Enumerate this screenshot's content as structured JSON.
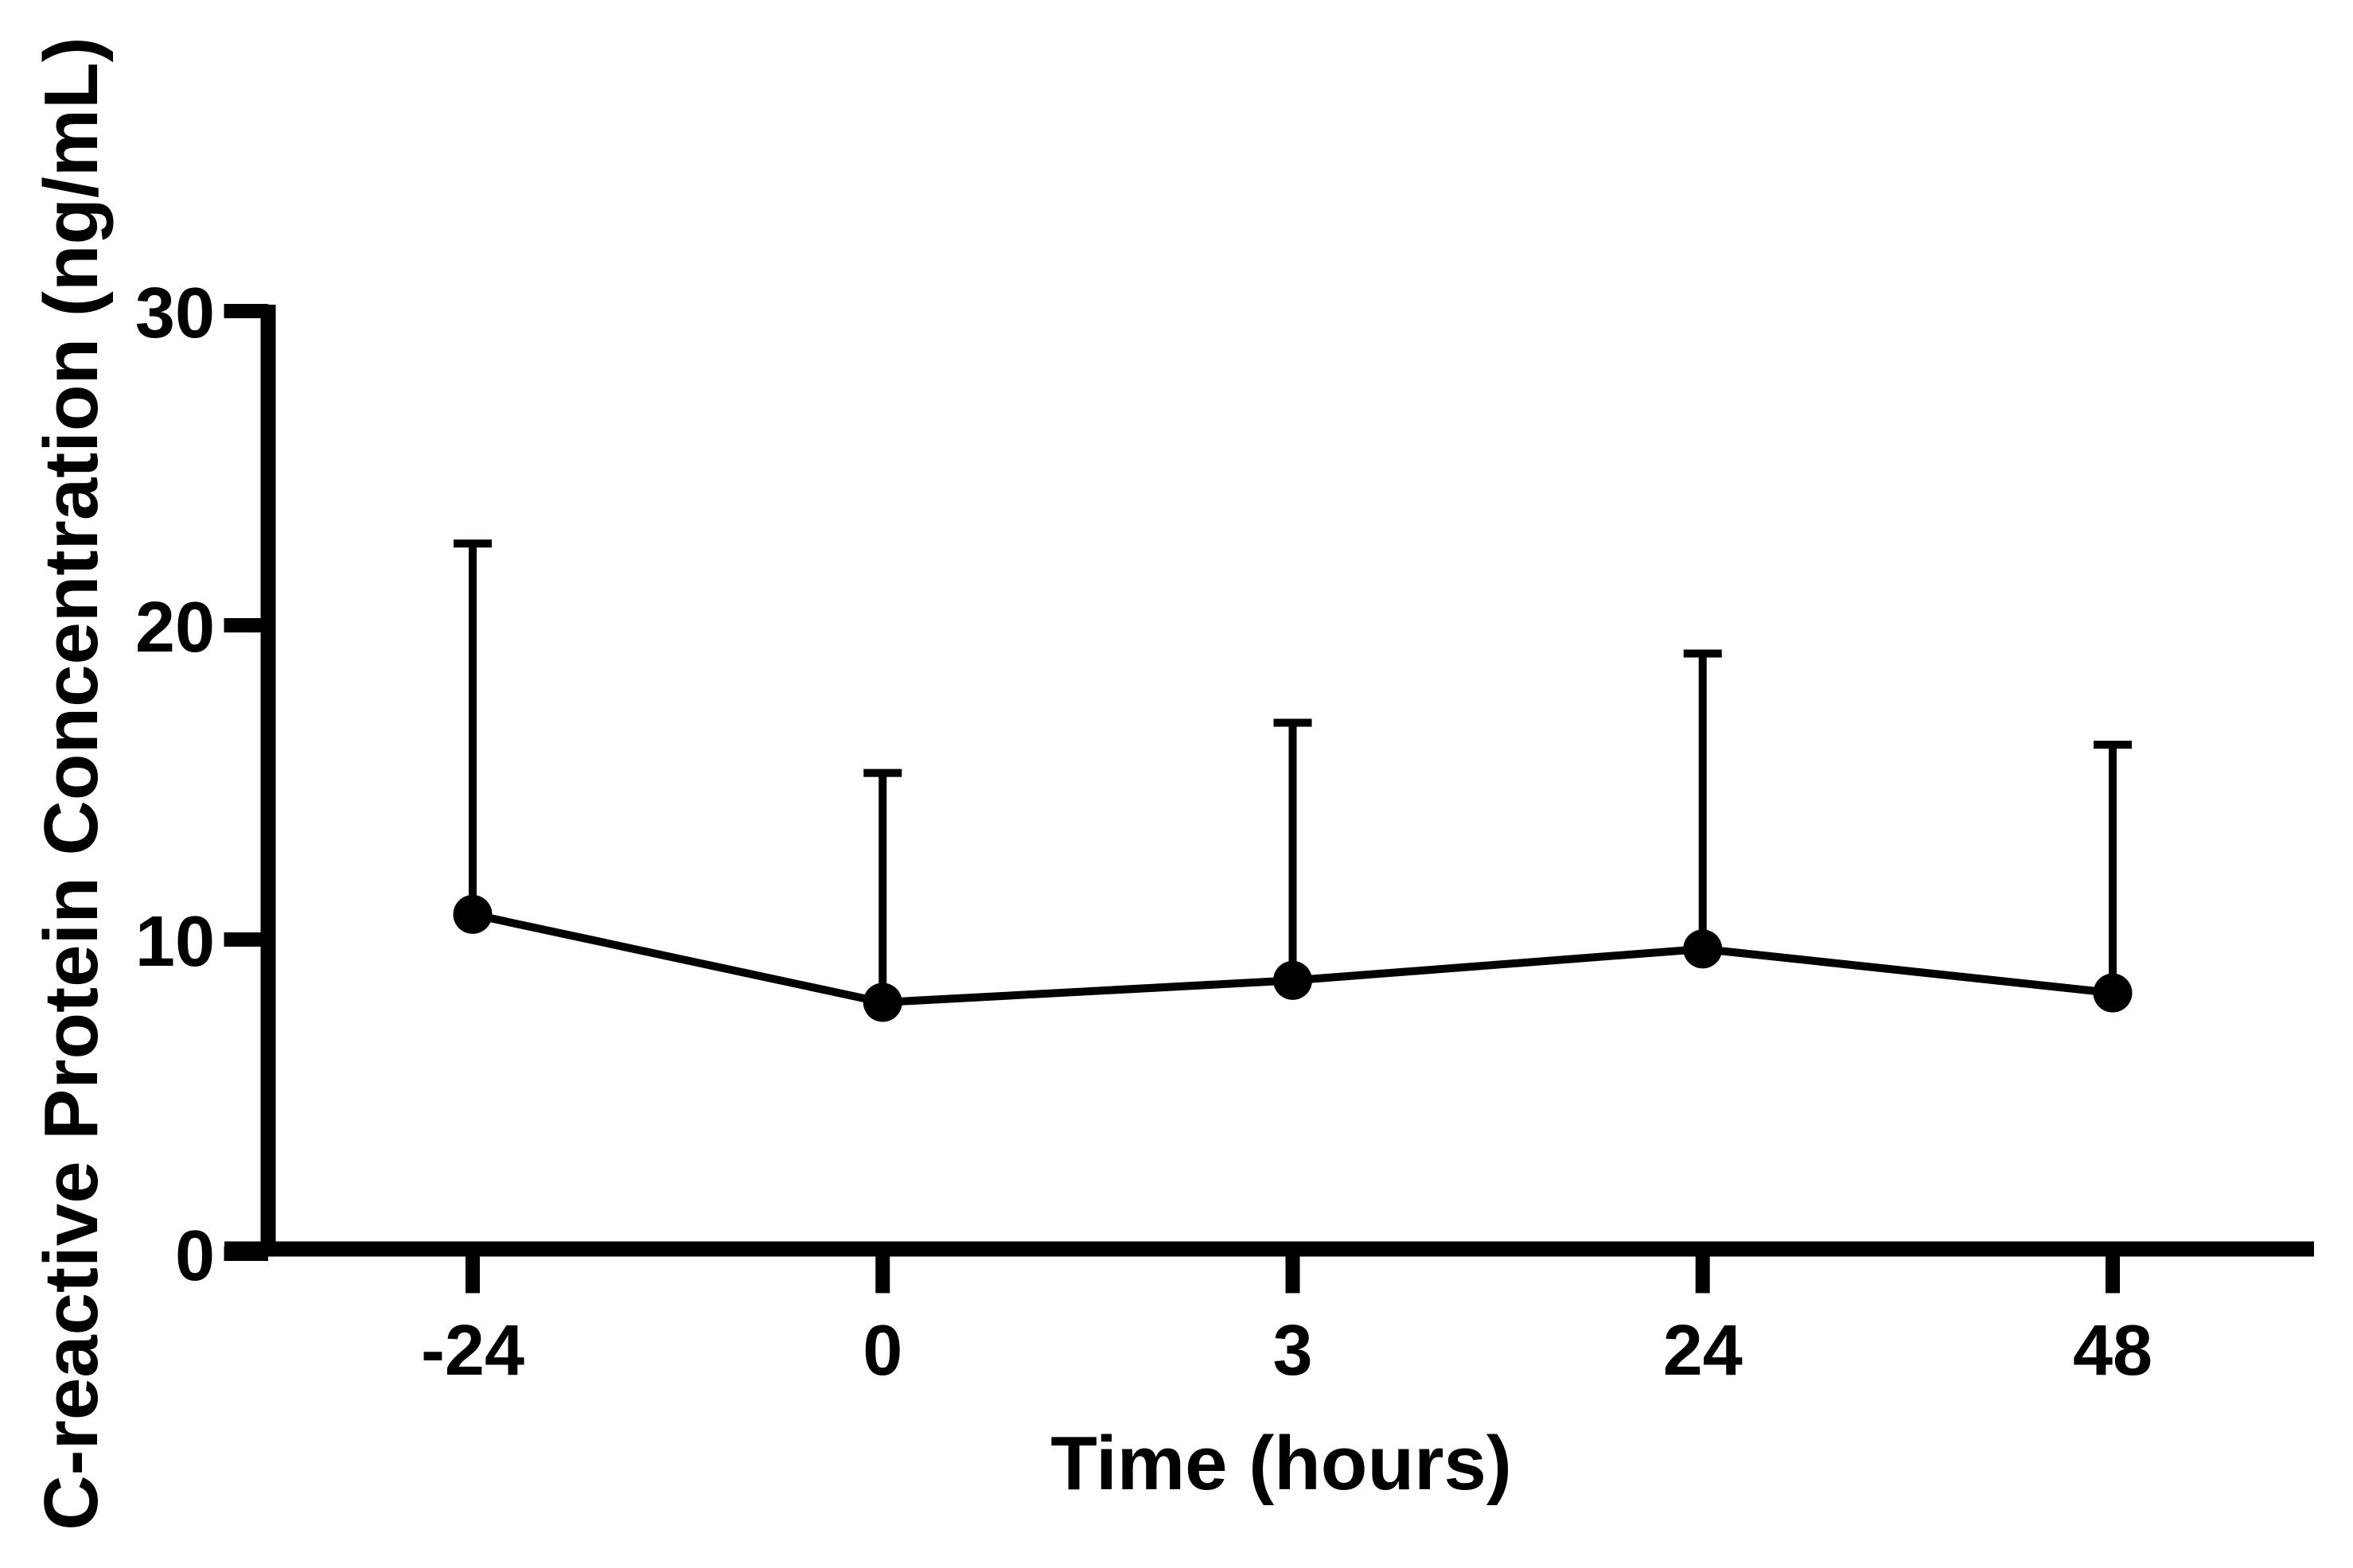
{
  "page": {
    "background_color": "#ffffff",
    "foreground_color": "#000000"
  },
  "chart_data": {
    "type": "line",
    "title": "",
    "xlabel": "Time (hours)",
    "ylabel": "C-reactive Protein Concentration (ng/mL)",
    "categories": [
      "-24",
      "0",
      "3",
      "24",
      "48"
    ],
    "y_ticks": [
      0,
      10,
      20,
      30
    ],
    "y_tick_labels": [
      "0",
      "10",
      "20",
      "30"
    ],
    "ylim": [
      0,
      30
    ],
    "grid": false,
    "legend": "none",
    "marker_style": "filled-circle",
    "error_bar_style": "upper-only-with-cap",
    "series": [
      {
        "name": "C-reactive protein concentration",
        "color": "#000000",
        "means": [
          10.8,
          8.0,
          8.7,
          9.7,
          8.3
        ],
        "error_upper_tops": [
          22.6,
          15.3,
          16.9,
          19.1,
          16.2
        ]
      }
    ]
  }
}
